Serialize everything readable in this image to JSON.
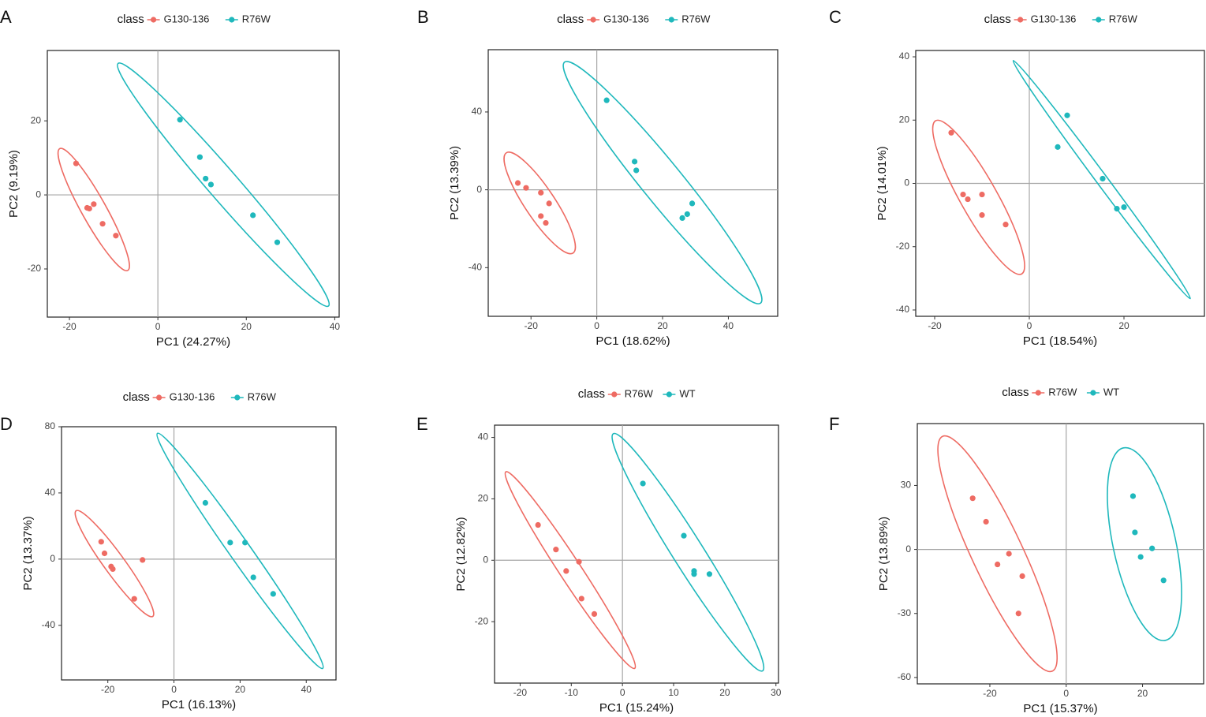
{
  "figure": {
    "legend_title": "class",
    "colors": {
      "red": "#ee6b63",
      "teal": "#1fb8bc"
    }
  },
  "chart_data": [
    {
      "panel": "A",
      "type": "scatter",
      "legend_title": "class",
      "xlabel": "PC1 (24.27%)",
      "ylabel": "PC2 (9.19%)",
      "xlim": [
        -25,
        41
      ],
      "ylim": [
        -33,
        39
      ],
      "xticks": [
        -20,
        0,
        20,
        40
      ],
      "yticks": [
        -20,
        0,
        20
      ],
      "series": [
        {
          "name": "G130-136",
          "color": "#ee6b63",
          "points": [
            [
              -18.5,
              8.5
            ],
            [
              -16,
              -3.5
            ],
            [
              -15.5,
              -3.7
            ],
            [
              -14.5,
              -2.5
            ],
            [
              -12.5,
              -7.8
            ],
            [
              -9.5,
              -11
            ]
          ],
          "ellipse": {
            "ends": [
              [
                -22.2,
                12.5
              ],
              [
                -6.8,
                -20.4
              ]
            ],
            "minor_ends": [
              [
                -16.2,
                -6.6
              ],
              [
                -12.8,
                -1.4
              ]
            ]
          }
        },
        {
          "name": "R76W",
          "color": "#1fb8bc",
          "points": [
            [
              5,
              20.3
            ],
            [
              9.5,
              10.2
            ],
            [
              10.8,
              4.4
            ],
            [
              12,
              2.8
            ],
            [
              21.5,
              -5.5
            ],
            [
              27,
              -12.8
            ]
          ],
          "ellipse": {
            "ends": [
              [
                -9,
                35.5
              ],
              [
                38.6,
                -30
              ]
            ],
            "minor_ends": [
              [
                17.6,
                0.4
              ],
              [
                12,
                5.1
              ]
            ]
          }
        }
      ]
    },
    {
      "panel": "B",
      "type": "scatter",
      "legend_title": "class",
      "xlabel": "PC1 (18.62%)",
      "ylabel": "PC2 (13.39%)",
      "xlim": [
        -33,
        55
      ],
      "ylim": [
        -65,
        72
      ],
      "xticks": [
        -20,
        0,
        20,
        40
      ],
      "yticks": [
        -40,
        0,
        40
      ],
      "series": [
        {
          "name": "G130-136",
          "color": "#ee6b63",
          "points": [
            [
              -24,
              3.5
            ],
            [
              -21.5,
              1
            ],
            [
              -17,
              -1.5
            ],
            [
              -17,
              -13.5
            ],
            [
              -15.5,
              -17
            ],
            [
              -14.5,
              -7
            ]
          ],
          "ellipse": {
            "ends": [
              [
                -27.5,
                19
              ],
              [
                -7.2,
                -32.5
              ]
            ],
            "minor_ends": [
              [
                -22,
                -8.2
              ],
              [
                -13.4,
                -3.1
              ]
            ]
          }
        },
        {
          "name": "R76W",
          "color": "#1fb8bc",
          "points": [
            [
              3,
              46
            ],
            [
              11.5,
              14.5
            ],
            [
              12,
              10
            ],
            [
              26,
              -14.5
            ],
            [
              27.5,
              -12.5
            ],
            [
              29,
              -7
            ]
          ],
          "ellipse": {
            "ends": [
              [
                -9.8,
                65.6
              ],
              [
                49.8,
                -58.2
              ]
            ],
            "minor_ends": [
              [
                26,
                7.2
              ],
              [
                14.2,
                1.4
              ]
            ]
          }
        }
      ]
    },
    {
      "panel": "C",
      "type": "scatter",
      "legend_title": "class",
      "xlabel": "PC1 (18.54%)",
      "ylabel": "PC2 (14.01%)",
      "xlim": [
        -24,
        37
      ],
      "ylim": [
        -42,
        42
      ],
      "xticks": [
        -20,
        0,
        20
      ],
      "yticks": [
        -40,
        -20,
        0,
        20,
        40
      ],
      "series": [
        {
          "name": "G130-136",
          "color": "#ee6b63",
          "points": [
            [
              -16.5,
              16
            ],
            [
              -14,
              -3.5
            ],
            [
              -13,
              -5
            ],
            [
              -10,
              -3.5
            ],
            [
              -10,
              -10
            ],
            [
              -5,
              -13
            ]
          ],
          "ellipse": {
            "ends": [
              [
                -19.8,
                19.8
              ],
              [
                -1.6,
                -28.6
              ]
            ],
            "minor_ends": [
              [
                -14.4,
                -6.2
              ],
              [
                -7,
                -2.6
              ]
            ]
          }
        },
        {
          "name": "R76W",
          "color": "#1fb8bc",
          "points": [
            [
              6,
              11.5
            ],
            [
              8,
              21.5
            ],
            [
              15.5,
              1.5
            ],
            [
              18.5,
              -8
            ],
            [
              20,
              -7.5
            ]
          ],
          "ellipse": {
            "ends": [
              [
                -3.4,
                38.8
              ],
              [
                34,
                -36.4
              ]
            ],
            "minor_ends": [
              [
                16,
                -0.2
              ],
              [
                14.6,
                2.6
              ]
            ]
          }
        }
      ]
    },
    {
      "panel": "D",
      "type": "scatter",
      "legend_title": "class",
      "xlabel": "PC1 (16.13%)",
      "ylabel": "PC2 (13.37%)",
      "xlim": [
        -34,
        49
      ],
      "ylim": [
        -73,
        80
      ],
      "xticks": [
        -20,
        0,
        20,
        40
      ],
      "yticks": [
        -40,
        0,
        40,
        80
      ],
      "series": [
        {
          "name": "G130-136",
          "color": "#ee6b63",
          "points": [
            [
              -22,
              10.5
            ],
            [
              -21,
              3.5
            ],
            [
              -19,
              -4.5
            ],
            [
              -18.5,
              -6
            ],
            [
              -12,
              -24
            ],
            [
              -9.5,
              -0.5
            ]
          ],
          "ellipse": {
            "ends": [
              [
                -29.6,
                29.2
              ],
              [
                -6.4,
                -34.6
              ]
            ],
            "minor_ends": [
              [
                -17.4,
                -8.2
              ],
              [
                -18.6,
                4
              ]
            ]
          }
        },
        {
          "name": "R76W",
          "color": "#1fb8bc",
          "points": [
            [
              9.5,
              34
            ],
            [
              17,
              10
            ],
            [
              21.5,
              10
            ],
            [
              24,
              -11
            ],
            [
              30,
              -21
            ]
          ],
          "ellipse": {
            "ends": [
              [
                -5,
                76
              ],
              [
                45,
                -66
              ]
            ],
            "minor_ends": [
              [
                22.4,
                7.2
              ],
              [
                16.4,
                2.8
              ]
            ]
          }
        }
      ]
    },
    {
      "panel": "E",
      "type": "scatter",
      "legend_title": "class",
      "xlabel": "PC1 (15.24%)",
      "ylabel": "PC2 (12.82%)",
      "xlim": [
        -25,
        30.5
      ],
      "ylim": [
        -40,
        44
      ],
      "xticks": [
        -20,
        -10,
        0,
        10,
        20,
        30
      ],
      "yticks": [
        -20,
        0,
        20,
        40
      ],
      "series": [
        {
          "name": "R76W",
          "color": "#ee6b63",
          "points": [
            [
              -16.5,
              11.5
            ],
            [
              -13,
              3.5
            ],
            [
              -11,
              -3.5
            ],
            [
              -8.5,
              -0.5
            ],
            [
              -8,
              -12.5
            ],
            [
              -5.5,
              -17.5
            ]
          ],
          "ellipse": {
            "ends": [
              [
                -22.8,
                28.8
              ],
              [
                2.4,
                -35.2
              ]
            ],
            "minor_ends": [
              [
                -8.2,
                -4.4
              ],
              [
                -12.2,
                -2
              ]
            ]
          }
        },
        {
          "name": "WT",
          "color": "#1fb8bc",
          "points": [
            [
              4,
              25
            ],
            [
              12,
              8
            ],
            [
              14,
              -3.5
            ],
            [
              14,
              -4.5
            ],
            [
              17,
              -4.5
            ]
          ],
          "ellipse": {
            "ends": [
              [
                -1.8,
                41.2
              ],
              [
                27.4,
                -36
              ]
            ],
            "minor_ends": [
              [
                15.2,
                5.6
              ],
              [
                10.4,
                -0.4
              ]
            ]
          }
        }
      ]
    },
    {
      "panel": "F",
      "type": "scatter",
      "legend_title": "class",
      "xlabel": "PC1 (15.37%)",
      "ylabel": "PC2 (13.89%)",
      "xlim": [
        -39,
        36
      ],
      "ylim": [
        -63,
        59
      ],
      "xticks": [
        -20,
        0,
        20
      ],
      "yticks": [
        -60,
        -30,
        0,
        30
      ],
      "series": [
        {
          "name": "R76W",
          "color": "#ee6b63",
          "points": [
            [
              -24.5,
              24
            ],
            [
              -21,
              13
            ],
            [
              -18,
              -7
            ],
            [
              -15,
              -2
            ],
            [
              -12.5,
              -30
            ],
            [
              -11.5,
              -12.5
            ]
          ],
          "ellipse": {
            "ends": [
              [
                -32.4,
                53
              ],
              [
                -3.6,
                -57
              ]
            ],
            "minor_ends": [
              [
                -11.8,
                2.4
              ],
              [
                -24.2,
                -6.4
              ]
            ]
          }
        },
        {
          "name": "WT",
          "color": "#1fb8bc",
          "points": [
            [
              17.5,
              25
            ],
            [
              18,
              8
            ],
            [
              19.5,
              -3.5
            ],
            [
              22.5,
              0.5
            ],
            [
              25.5,
              -14.5
            ]
          ],
          "ellipse": {
            "ends": [
              [
                15,
                47.6
              ],
              [
                26,
                -42.6
              ]
            ],
            "minor_ends": [
              [
                28.6,
                4.8
              ],
              [
                12.4,
                0.2
              ]
            ]
          }
        }
      ]
    }
  ]
}
